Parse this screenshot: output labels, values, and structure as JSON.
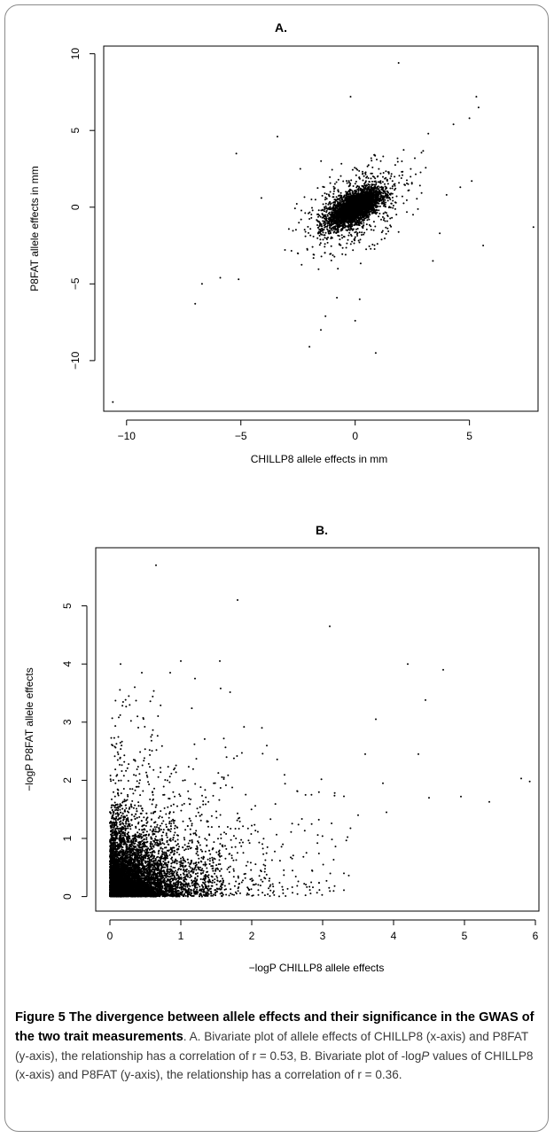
{
  "chart_data": [
    {
      "type": "scatter",
      "title": "A.",
      "xlabel": "CHILLP8 allele effects in mm",
      "ylabel": "P8FAT allele effects in mm",
      "xlim": [
        -11,
        8
      ],
      "ylim": [
        -13.3,
        10.5
      ],
      "xticks": [
        -10,
        -5,
        0,
        5
      ],
      "yticks": [
        -10,
        -5,
        0,
        5,
        10
      ],
      "grid": false,
      "legend": "none",
      "description_points": "dense elliptical cloud centred at (0,0) with positive correlation, plus scattered outliers",
      "core_cloud": {
        "center": [
          0,
          0
        ],
        "count": 3500,
        "sd_x": 0.55,
        "sd_y": 0.6,
        "correlation": 0.6
      },
      "spread_points": {
        "count": 600,
        "sd_x": 1.2,
        "sd_y": 1.5,
        "correlation": 0.5
      },
      "outliers": [
        [
          -10.6,
          -12.7
        ],
        [
          -7.0,
          -6.3
        ],
        [
          -6.7,
          -5.0
        ],
        [
          -5.9,
          -4.6
        ],
        [
          -5.1,
          -4.7
        ],
        [
          -5.2,
          3.5
        ],
        [
          -3.4,
          4.6
        ],
        [
          -4.1,
          0.6
        ],
        [
          -2.4,
          2.5
        ],
        [
          -2.0,
          -9.1
        ],
        [
          -1.5,
          -8.0
        ],
        [
          -1.3,
          -7.1
        ],
        [
          -0.8,
          -5.9
        ],
        [
          -0.2,
          7.2
        ],
        [
          0.2,
          -6.0
        ],
        [
          0.0,
          -7.4
        ],
        [
          1.9,
          9.4
        ],
        [
          0.9,
          -9.5
        ],
        [
          3.2,
          4.8
        ],
        [
          4.3,
          5.4
        ],
        [
          5.3,
          7.2
        ],
        [
          5.4,
          6.5
        ],
        [
          5.0,
          5.8
        ],
        [
          5.6,
          -2.5
        ],
        [
          7.8,
          -1.3
        ],
        [
          4.6,
          1.3
        ],
        [
          3.7,
          -1.7
        ],
        [
          3.4,
          -3.5
        ],
        [
          5.1,
          1.7
        ],
        [
          4.0,
          0.8
        ]
      ]
    },
    {
      "type": "scatter",
      "title": "B.",
      "xlabel": "−logP CHILLP8 allele effects",
      "ylabel": "−logP P8FAT allele effects",
      "xlim": [
        -0.2,
        6.05
      ],
      "ylim": [
        -0.25,
        6.0
      ],
      "xticks": [
        0,
        1,
        2,
        3,
        4,
        5,
        6
      ],
      "yticks": [
        0,
        1,
        2,
        3,
        4,
        5
      ],
      "grid": false,
      "legend": "none",
      "description_points": "very dense mass near origin decaying outward along both axes, with sparse high values",
      "dense_mass": {
        "count": 9000,
        "x_scale": 0.35,
        "y_scale": 0.35
      },
      "sparse_points": {
        "count": 1800,
        "x_scale": 0.9,
        "y_scale": 0.75
      },
      "outliers": [
        [
          0.65,
          5.7
        ],
        [
          1.8,
          5.1
        ],
        [
          3.1,
          4.65
        ],
        [
          4.2,
          4.0
        ],
        [
          4.7,
          3.9
        ],
        [
          4.45,
          3.38
        ],
        [
          4.35,
          2.45
        ],
        [
          4.5,
          1.7
        ],
        [
          4.95,
          1.72
        ],
        [
          5.35,
          1.63
        ],
        [
          5.8,
          2.03
        ],
        [
          5.92,
          1.98
        ],
        [
          3.85,
          1.95
        ],
        [
          3.6,
          2.45
        ],
        [
          3.9,
          1.45
        ],
        [
          3.3,
          0.4
        ],
        [
          0.15,
          4.0
        ],
        [
          1.0,
          4.05
        ],
        [
          1.55,
          4.05
        ],
        [
          0.85,
          3.85
        ],
        [
          0.45,
          3.85
        ],
        [
          3.75,
          3.05
        ],
        [
          3.5,
          1.4
        ],
        [
          1.2,
          3.75
        ],
        [
          0.35,
          3.6
        ]
      ]
    }
  ],
  "caption": {
    "head": "Figure 5 The divergence between allele effects and their significance in the GWAS of the two trait measurements",
    "text_1": ". A. Bivariate plot of allele effects of CHILLP8 (x-axis) and P8FAT (y-axis), the relationship has a correlation of r = 0.53, B. Bivariate plot of -log",
    "italic_p": "P",
    "text_2": " values of CHILLP8 (x-axis) and P8FAT (y-axis), the relationship has a correlation of r = 0.36."
  }
}
